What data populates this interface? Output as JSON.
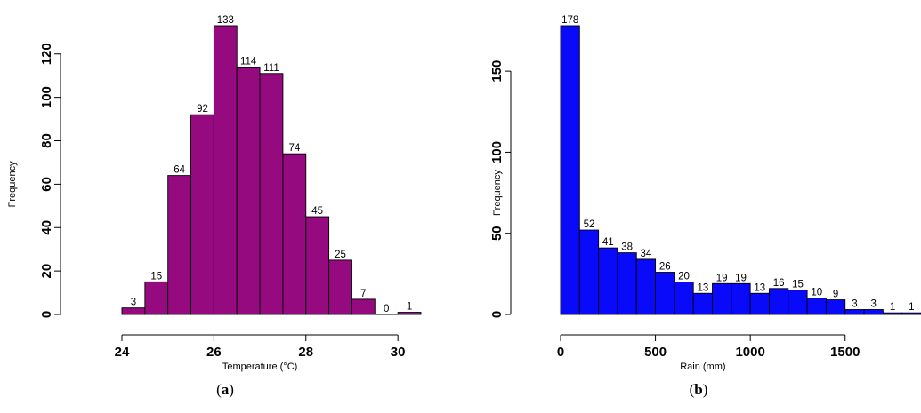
{
  "colors": {
    "temperature_bar": "#960a80",
    "rain_bar": "#0a0afa",
    "axis": "#000000"
  },
  "chart_data": [
    {
      "type": "bar",
      "panel_letter": "a",
      "xlabel": "Temperature (°C)",
      "ylabel": "Frequency",
      "bin_edges": [
        24,
        24.5,
        25,
        25.5,
        26,
        26.5,
        27,
        27.5,
        28,
        28.5,
        29,
        29.5,
        30,
        30.5
      ],
      "values": [
        3,
        15,
        64,
        92,
        133,
        114,
        111,
        74,
        45,
        25,
        7,
        0,
        1
      ],
      "value_labels": [
        "3",
        "15",
        "64",
        "92",
        "133",
        "114",
        "111",
        "74",
        "45",
        "25",
        "7",
        "0",
        "1"
      ],
      "xticks": [
        24,
        26,
        28,
        30
      ],
      "xtick_labels": [
        "24",
        "26",
        "28",
        "30"
      ],
      "yticks": [
        0,
        20,
        40,
        60,
        80,
        100,
        120
      ],
      "ytick_labels": [
        "0",
        "20",
        "40",
        "60",
        "80",
        "100",
        "120"
      ],
      "xlim": [
        24,
        30.5
      ],
      "ylim": [
        0,
        133
      ],
      "grid": false,
      "bar_color": "#960a80"
    },
    {
      "type": "bar",
      "panel_letter": "b",
      "xlabel": "Rain (mm)",
      "ylabel": "Frequency",
      "bin_edges": [
        0,
        100,
        200,
        300,
        400,
        500,
        600,
        700,
        800,
        900,
        1000,
        1100,
        1200,
        1300,
        1400,
        1500,
        1600,
        1700,
        1800,
        1900
      ],
      "values": [
        178,
        52,
        41,
        38,
        34,
        26,
        20,
        13,
        19,
        19,
        13,
        16,
        15,
        10,
        9,
        3,
        3,
        1,
        1
      ],
      "value_labels": [
        "178",
        "52",
        "41",
        "38",
        "34",
        "26",
        "20",
        "13",
        "19",
        "19",
        "13",
        "16",
        "15",
        "10",
        "9",
        "3",
        "3",
        "1",
        "1"
      ],
      "xticks": [
        0,
        500,
        1000,
        1500
      ],
      "xtick_labels": [
        "0",
        "500",
        "1000",
        "1500"
      ],
      "yticks": [
        0,
        50,
        100,
        150
      ],
      "ytick_labels": [
        "0",
        "50",
        "100",
        "150"
      ],
      "xlim": [
        0,
        1900
      ],
      "ylim": [
        0,
        178
      ],
      "grid": false,
      "bar_color": "#0a0afa"
    }
  ]
}
